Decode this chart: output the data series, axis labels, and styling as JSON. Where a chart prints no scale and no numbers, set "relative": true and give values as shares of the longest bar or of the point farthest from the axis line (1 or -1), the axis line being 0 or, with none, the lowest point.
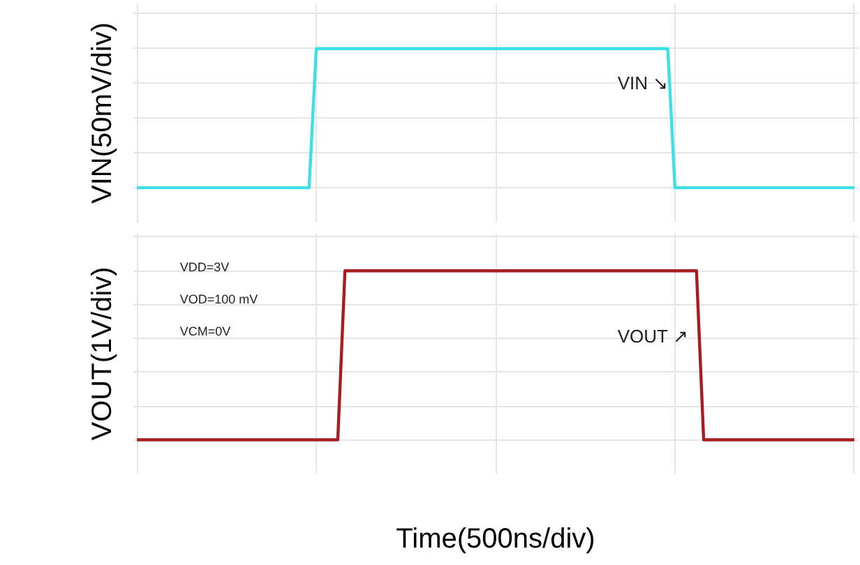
{
  "chart_data": [
    {
      "type": "line",
      "relative": true,
      "ylabel": "VIN(50mV/div)",
      "grid": true,
      "tick_labels": false,
      "categories": [
        null,
        null,
        null,
        null,
        null,
        null,
        null,
        null,
        null,
        null,
        null,
        null,
        null,
        null,
        null,
        null,
        null,
        null,
        null,
        null,
        null,
        null,
        null,
        null,
        null,
        null,
        null,
        null,
        null,
        null,
        null,
        null,
        null,
        null,
        null,
        null,
        null,
        null,
        null,
        null,
        null,
        null,
        null,
        null,
        null,
        null,
        null,
        null,
        null,
        null,
        null,
        null,
        null,
        null,
        null,
        null,
        null,
        null,
        null,
        null,
        null,
        null,
        null,
        null,
        null,
        null,
        null,
        null,
        null,
        null,
        null,
        null,
        null,
        null,
        null,
        null,
        null,
        null,
        null,
        null,
        null,
        null,
        null,
        null,
        null,
        null,
        null,
        null,
        null,
        null,
        null,
        null,
        null,
        null,
        null,
        null,
        null,
        null,
        null,
        null,
        null
      ],
      "series": [
        {
          "color": "#3ee0e6",
          "values": [
            0,
            0,
            0,
            0,
            0,
            0,
            0,
            0,
            0,
            0,
            0,
            0,
            0,
            0,
            0,
            0,
            0,
            0,
            0,
            0,
            0,
            0,
            0,
            0,
            0,
            1,
            1,
            1,
            1,
            1,
            1,
            1,
            1,
            1,
            1,
            1,
            1,
            1,
            1,
            1,
            1,
            1,
            1,
            1,
            1,
            1,
            1,
            1,
            1,
            1,
            1,
            1,
            1,
            1,
            1,
            1,
            1,
            1,
            1,
            1,
            1,
            1,
            1,
            1,
            1,
            1,
            1,
            1,
            1,
            1,
            1,
            1,
            1,
            1,
            1,
            0,
            0,
            0,
            0,
            0,
            0,
            0,
            0,
            0,
            0,
            0,
            0,
            0,
            0,
            0,
            0,
            0,
            0,
            0,
            0,
            0,
            0,
            0,
            0,
            0,
            0
          ]
        }
      ],
      "annotations": [
        "VIN ↘"
      ]
    },
    {
      "type": "line",
      "relative": true,
      "ylabel": "VOUT(1V/div)",
      "xlabel": "Time(500ns/div)",
      "grid": true,
      "tick_labels": false,
      "categories": [
        null,
        null,
        null,
        null,
        null,
        null,
        null,
        null,
        null,
        null,
        null,
        null,
        null,
        null,
        null,
        null,
        null,
        null,
        null,
        null,
        null,
        null,
        null,
        null,
        null,
        null,
        null,
        null,
        null,
        null,
        null,
        null,
        null,
        null,
        null,
        null,
        null,
        null,
        null,
        null,
        null,
        null,
        null,
        null,
        null,
        null,
        null,
        null,
        null,
        null,
        null,
        null,
        null,
        null,
        null,
        null,
        null,
        null,
        null,
        null,
        null,
        null,
        null,
        null,
        null,
        null,
        null,
        null,
        null,
        null,
        null,
        null,
        null,
        null,
        null,
        null,
        null,
        null,
        null,
        null,
        null,
        null,
        null,
        null,
        null,
        null,
        null,
        null,
        null,
        null,
        null,
        null,
        null,
        null,
        null,
        null,
        null,
        null,
        null,
        null,
        null
      ],
      "series": [
        {
          "color": "#a51e22",
          "values": [
            0,
            0,
            0,
            0,
            0,
            0,
            0,
            0,
            0,
            0,
            0,
            0,
            0,
            0,
            0,
            0,
            0,
            0,
            0,
            0,
            0,
            0,
            0,
            0,
            0,
            0,
            0,
            0,
            0,
            1,
            1,
            1,
            1,
            1,
            1,
            1,
            1,
            1,
            1,
            1,
            1,
            1,
            1,
            1,
            1,
            1,
            1,
            1,
            1,
            1,
            1,
            1,
            1,
            1,
            1,
            1,
            1,
            1,
            1,
            1,
            1,
            1,
            1,
            1,
            1,
            1,
            1,
            1,
            1,
            1,
            1,
            1,
            1,
            1,
            1,
            1,
            1,
            1,
            1,
            0,
            0,
            0,
            0,
            0,
            0,
            0,
            0,
            0,
            0,
            0,
            0,
            0,
            0,
            0,
            0,
            0,
            0,
            0,
            0,
            0,
            0
          ]
        }
      ],
      "annotations": [
        "VDD=3V",
        "VOD=100 mV",
        "VCM=0V",
        "VOUT ↗"
      ]
    }
  ]
}
